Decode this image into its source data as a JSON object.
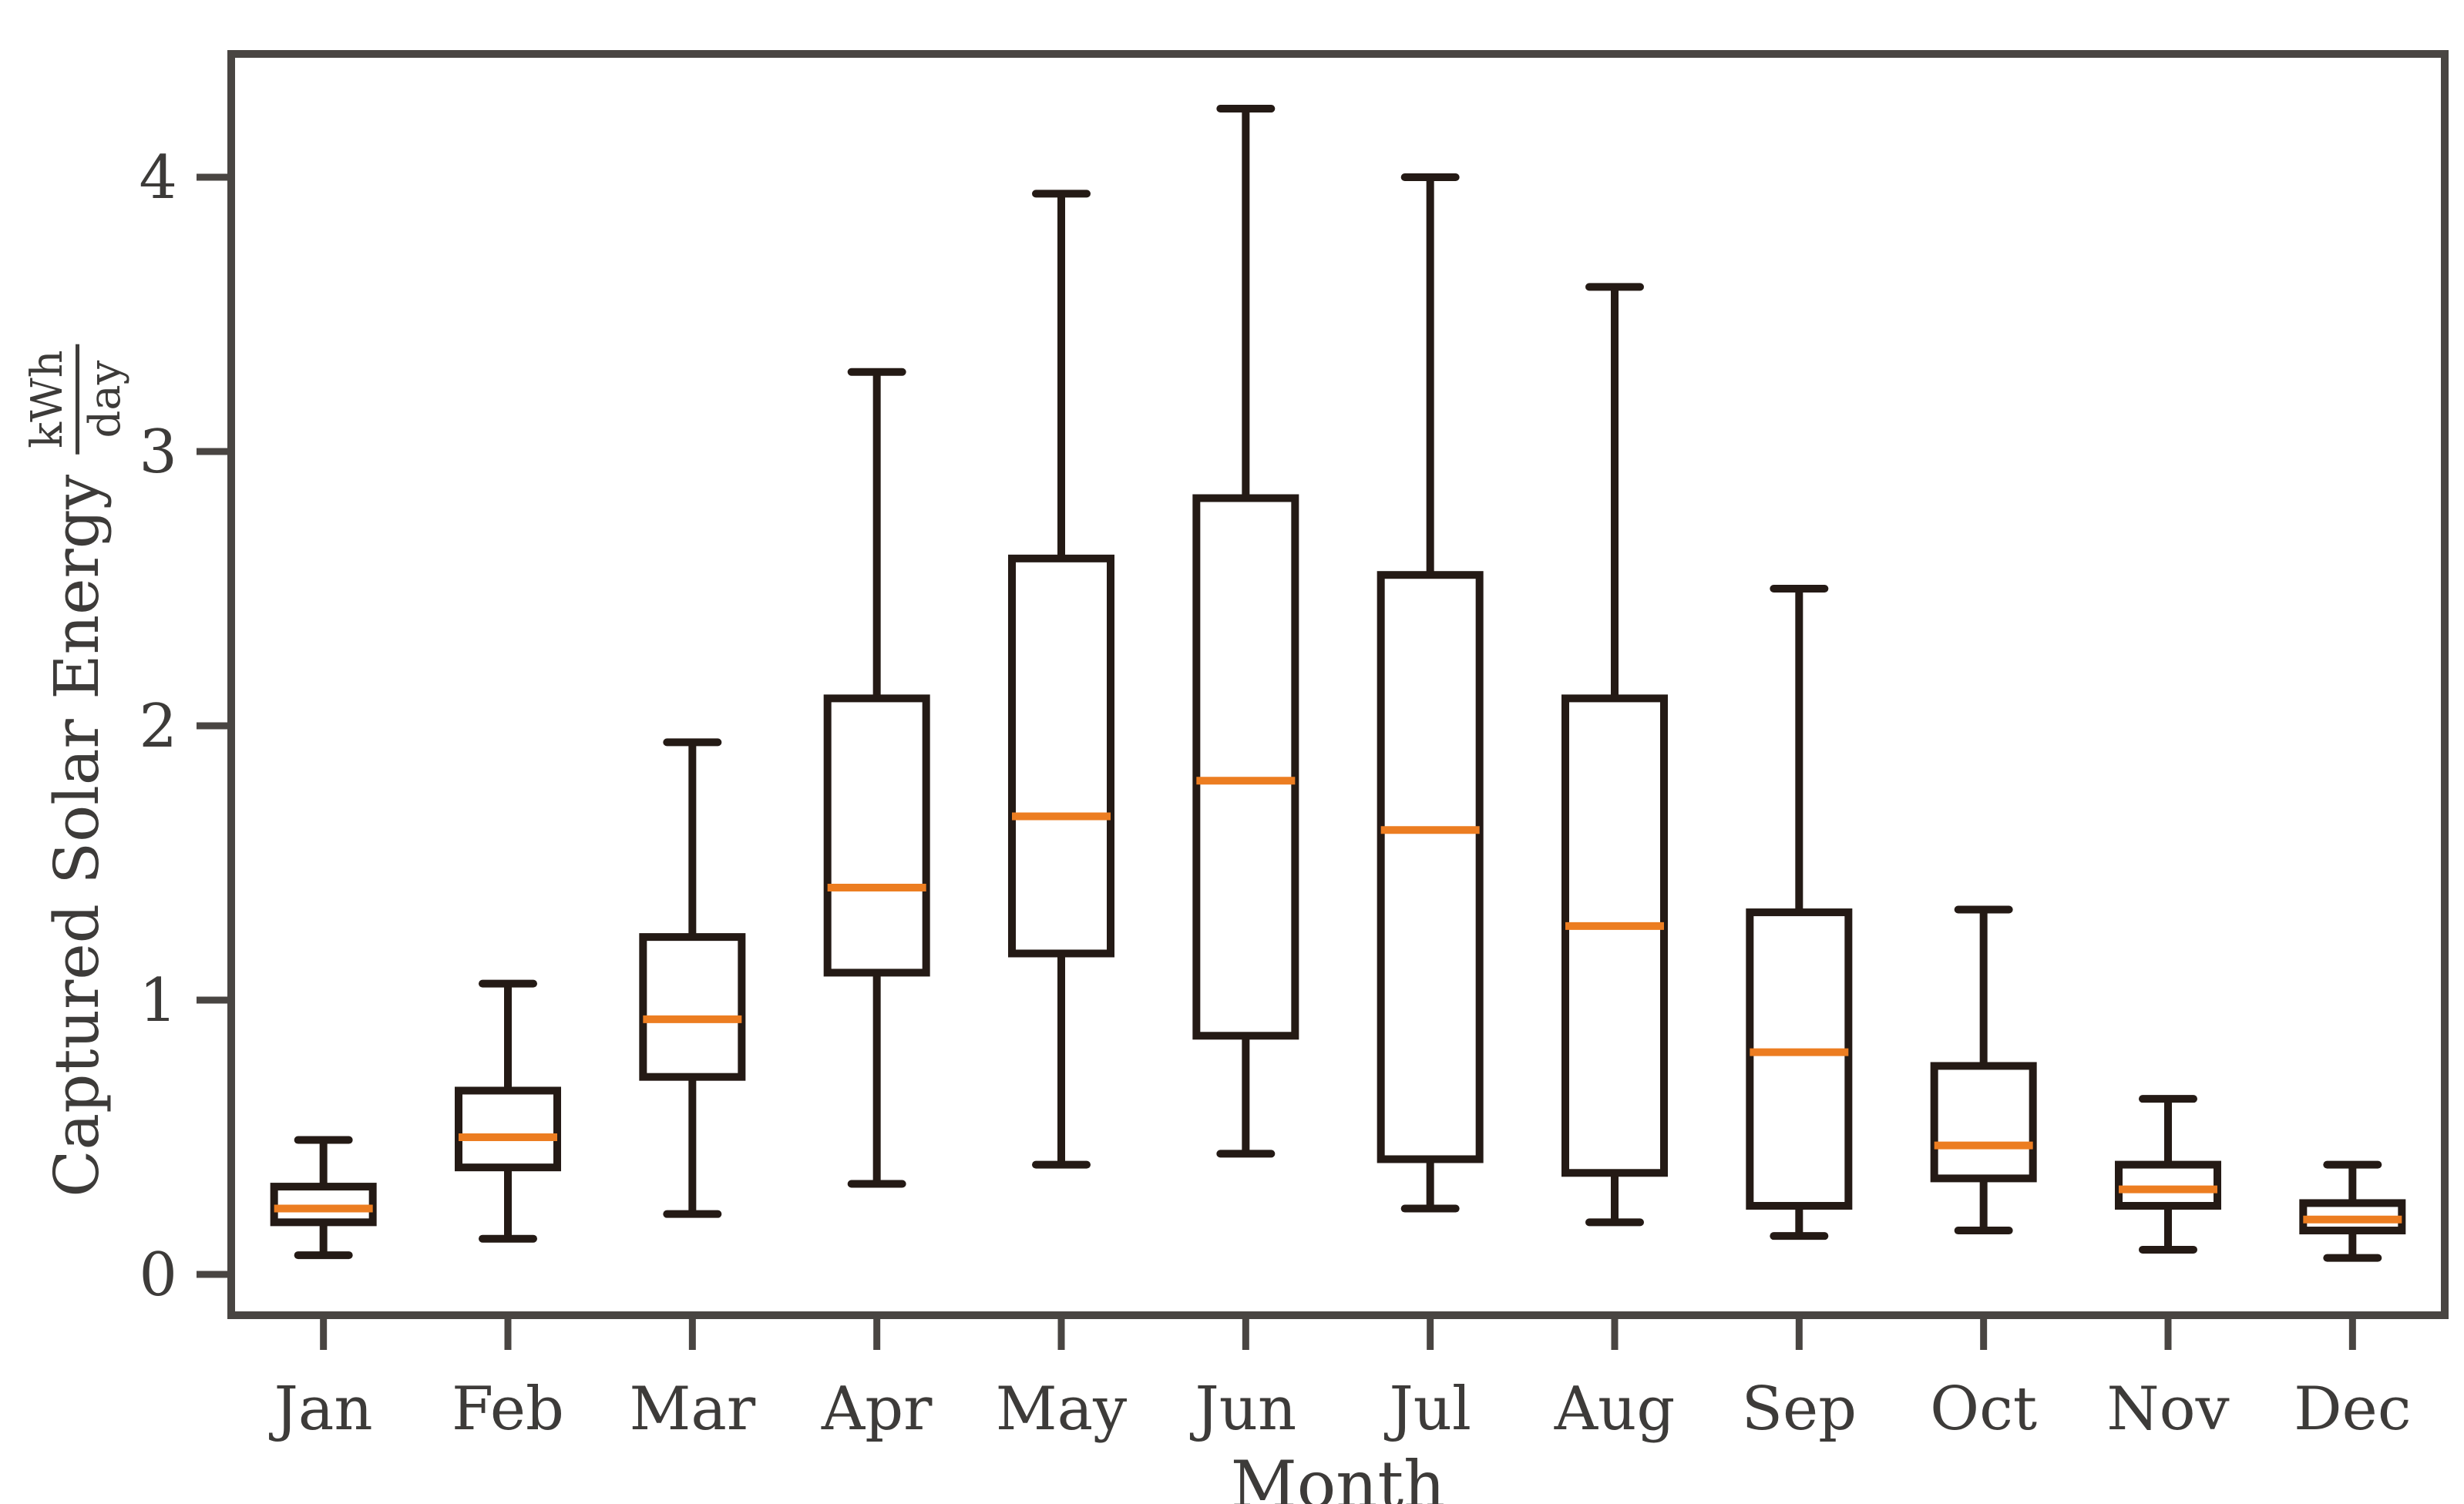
{
  "chart_data": {
    "type": "boxplot",
    "title": "",
    "xlabel": "Month",
    "ylabel": "Captured Solar Energy",
    "ylabel_unit_numerator": "kWh",
    "ylabel_unit_denominator": "day",
    "categories": [
      "Jan",
      "Feb",
      "Mar",
      "Apr",
      "May",
      "Jun",
      "Jul",
      "Aug",
      "Sep",
      "Oct",
      "Nov",
      "Dec"
    ],
    "yticks": [
      "0",
      "1",
      "2",
      "3",
      "4"
    ],
    "ylim": [
      -0.15,
      4.45
    ],
    "grid": false,
    "legend": "none",
    "boxes": [
      {
        "label": "Jan",
        "whisker_low": 0.07,
        "q1": 0.19,
        "median": 0.24,
        "q3": 0.32,
        "whisker_high": 0.49
      },
      {
        "label": "Feb",
        "whisker_low": 0.13,
        "q1": 0.39,
        "median": 0.5,
        "q3": 0.67,
        "whisker_high": 1.06
      },
      {
        "label": "Mar",
        "whisker_low": 0.22,
        "q1": 0.72,
        "median": 0.93,
        "q3": 1.23,
        "whisker_high": 1.94
      },
      {
        "label": "Apr",
        "whisker_low": 0.33,
        "q1": 1.1,
        "median": 1.41,
        "q3": 2.1,
        "whisker_high": 3.29
      },
      {
        "label": "May",
        "whisker_low": 0.4,
        "q1": 1.17,
        "median": 1.67,
        "q3": 2.61,
        "whisker_high": 3.94
      },
      {
        "label": "Jun",
        "whisker_low": 0.44,
        "q1": 0.87,
        "median": 1.8,
        "q3": 2.83,
        "whisker_high": 4.25
      },
      {
        "label": "Jul",
        "whisker_low": 0.24,
        "q1": 0.42,
        "median": 1.62,
        "q3": 2.55,
        "whisker_high": 4.0
      },
      {
        "label": "Aug",
        "whisker_low": 0.19,
        "q1": 0.37,
        "median": 1.27,
        "q3": 2.1,
        "whisker_high": 3.6
      },
      {
        "label": "Sep",
        "whisker_low": 0.14,
        "q1": 0.25,
        "median": 0.81,
        "q3": 1.32,
        "whisker_high": 2.5
      },
      {
        "label": "Oct",
        "whisker_low": 0.16,
        "q1": 0.35,
        "median": 0.47,
        "q3": 0.76,
        "whisker_high": 1.33
      },
      {
        "label": "Nov",
        "whisker_low": 0.09,
        "q1": 0.25,
        "median": 0.31,
        "q3": 0.4,
        "whisker_high": 0.64
      },
      {
        "label": "Dec",
        "whisker_low": 0.06,
        "q1": 0.16,
        "median": 0.2,
        "q3": 0.26,
        "whisker_high": 0.4
      }
    ]
  },
  "colors": {
    "background": "#ffffff",
    "box_edge": "#241a15",
    "box_fill": "#ffffff",
    "median": "#ec7d21",
    "axis": "#494542",
    "text": "#3d3b39"
  }
}
